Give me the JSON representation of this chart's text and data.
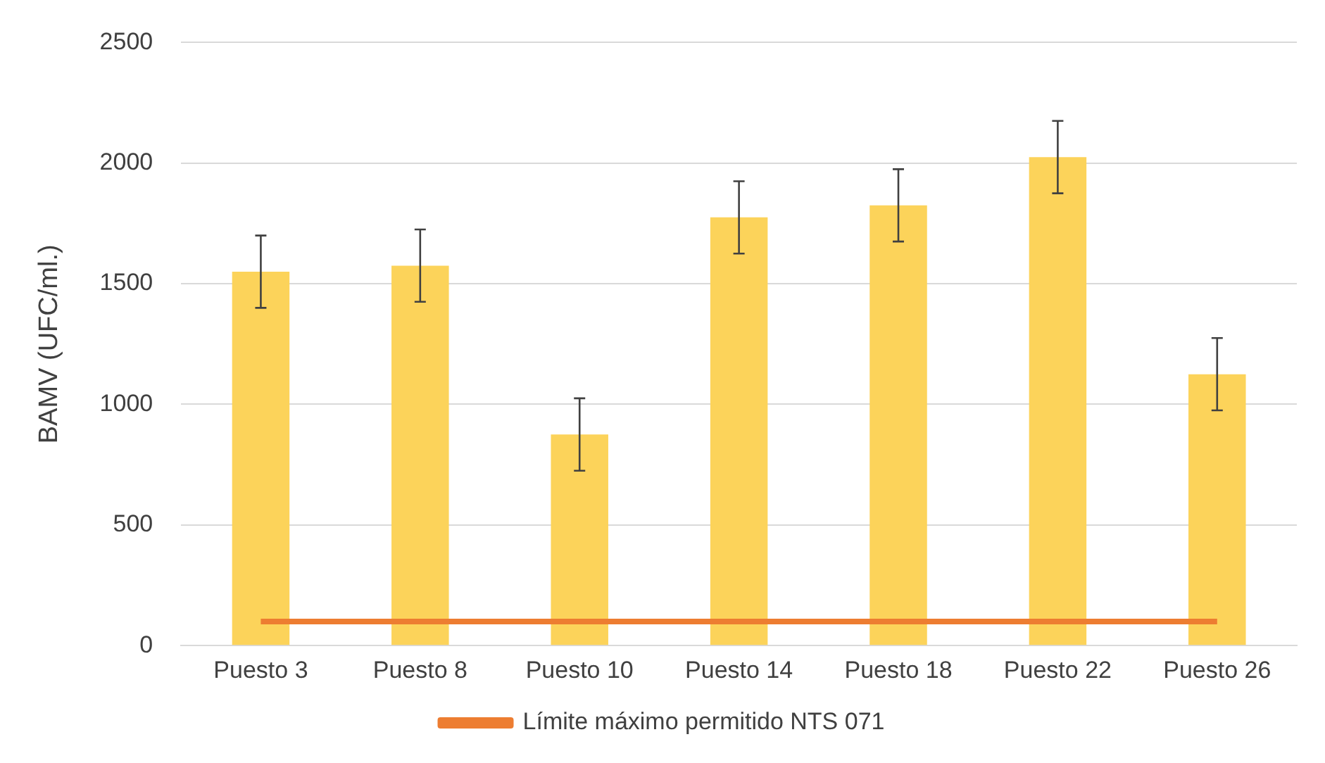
{
  "chart_data": {
    "type": "bar",
    "ylabel": "BAMV (UFC/ml.)",
    "categories": [
      "Puesto 3",
      "Puesto 8",
      "Puesto 10",
      "Puesto 14",
      "Puesto 18",
      "Puesto 22",
      "Puesto 26"
    ],
    "series": [
      {
        "color": "#fcd35a",
        "values": [
          1550,
          1575,
          875,
          1775,
          1825,
          2025,
          1125
        ],
        "errors": [
          150,
          150,
          150,
          150,
          150,
          150,
          150
        ]
      },
      {
        "type": "line",
        "name": "Límite máximo permitido NTS 071",
        "color": "#ed7d31",
        "values": [
          100,
          100,
          100,
          100,
          100,
          100,
          100
        ]
      }
    ],
    "ylim": [
      0,
      2500
    ],
    "yticks": [
      0,
      500,
      1000,
      1500,
      2000,
      2500
    ],
    "grid": "y",
    "legend": "bottom",
    "marker": "none",
    "line_style": "solid"
  }
}
